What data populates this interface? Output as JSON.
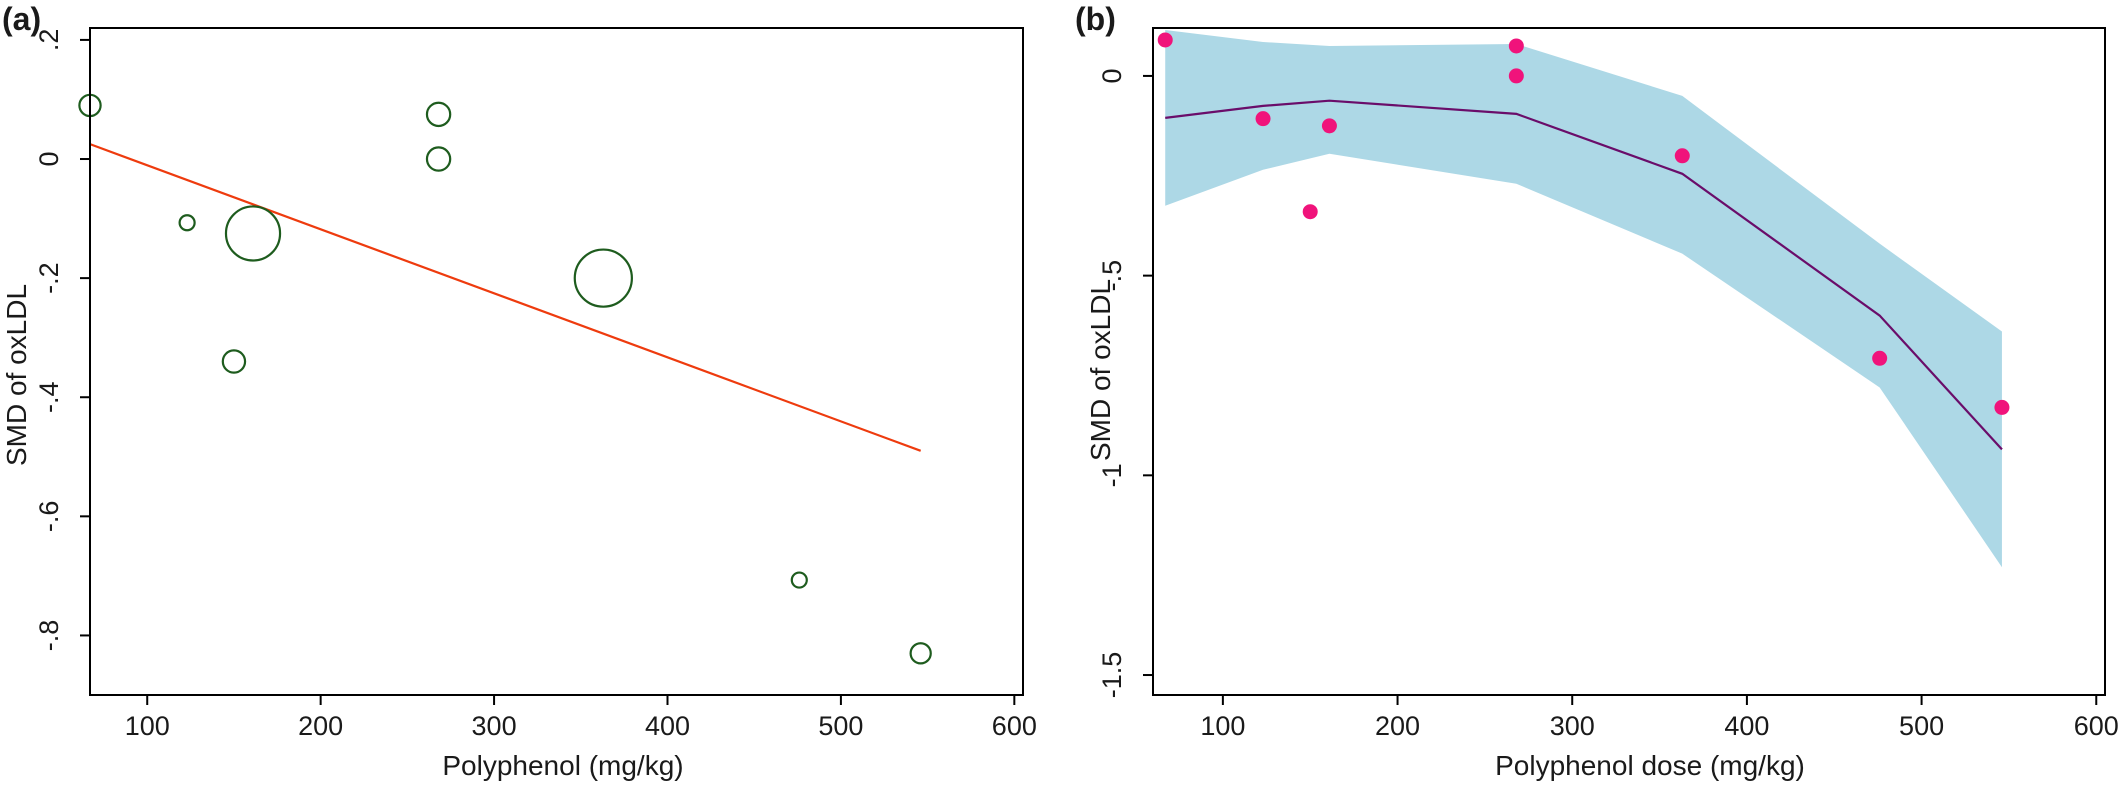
{
  "chart_data": [
    {
      "panel_label": "(a)",
      "type": "scatter",
      "xlabel": "Polyphenol (mg/kg)",
      "ylabel": "SMD of oxLDL",
      "xlim": [
        67,
        605
      ],
      "ylim": [
        -0.9,
        0.22
      ],
      "xticks": [
        100,
        200,
        300,
        400,
        500,
        600
      ],
      "xtick_labels": [
        "100",
        "200",
        "300",
        "400",
        "500",
        "600"
      ],
      "yticks": [
        -0.8,
        -0.6,
        -0.4,
        -0.2,
        0,
        0.2
      ],
      "ytick_labels": [
        "-.8",
        "-.6",
        "-.4",
        "-.2",
        "0",
        ".2"
      ],
      "grid": false,
      "marker": "hollow circle sized by study weight",
      "point_color": "#1e5c1e",
      "line_color": "#ee3b0e",
      "points": [
        {
          "x": 67,
          "y": 0.09,
          "weight": 2.0
        },
        {
          "x": 123,
          "y": -0.107,
          "weight": 1.0
        },
        {
          "x": 150,
          "y": -0.34,
          "weight": 2.2
        },
        {
          "x": 161,
          "y": -0.125,
          "weight": 13.0
        },
        {
          "x": 268,
          "y": 0.075,
          "weight": 2.4
        },
        {
          "x": 268,
          "y": 0.0,
          "weight": 2.4
        },
        {
          "x": 363,
          "y": -0.2,
          "weight": 14.5
        },
        {
          "x": 476,
          "y": -0.707,
          "weight": 1.0
        },
        {
          "x": 546,
          "y": -0.83,
          "weight": 1.8
        }
      ],
      "fit_line": {
        "x": [
          67,
          546
        ],
        "y": [
          0.025,
          -0.49
        ]
      }
    },
    {
      "panel_label": "(b)",
      "type": "line",
      "xlabel": "Polyphenol dose (mg/kg)",
      "ylabel": "SMD of oxLDL",
      "xlim": [
        60,
        605
      ],
      "ylim": [
        -1.55,
        0.12
      ],
      "xticks": [
        100,
        200,
        300,
        400,
        500,
        600
      ],
      "xtick_labels": [
        "100",
        "200",
        "300",
        "400",
        "500",
        "600"
      ],
      "yticks": [
        -1.5,
        -1,
        -0.5,
        0
      ],
      "ytick_labels": [
        "-1.5",
        "-1",
        "-.5",
        "0"
      ],
      "grid": false,
      "band_color": "#add8e6",
      "line_color": "#6a0d6a",
      "point_color": "#f0137b",
      "curve": {
        "x": [
          67,
          123,
          161,
          268,
          363,
          476,
          546
        ],
        "y": [
          -0.105,
          -0.075,
          -0.062,
          -0.095,
          -0.245,
          -0.6,
          -0.935
        ]
      },
      "ci_upper": {
        "x": [
          67,
          123,
          161,
          268,
          363,
          476,
          546
        ],
        "y": [
          0.115,
          0.085,
          0.075,
          0.08,
          -0.05,
          -0.42,
          -0.64
        ]
      },
      "ci_lower": {
        "x": [
          67,
          123,
          161,
          268,
          363,
          476,
          546
        ],
        "y": [
          -0.325,
          -0.235,
          -0.195,
          -0.27,
          -0.445,
          -0.78,
          -1.23
        ]
      },
      "points": [
        {
          "x": 67,
          "y": 0.09
        },
        {
          "x": 123,
          "y": -0.107
        },
        {
          "x": 150,
          "y": -0.34
        },
        {
          "x": 161,
          "y": -0.125
        },
        {
          "x": 268,
          "y": 0.075
        },
        {
          "x": 268,
          "y": 0.0
        },
        {
          "x": 363,
          "y": -0.2
        },
        {
          "x": 476,
          "y": -0.707
        },
        {
          "x": 546,
          "y": -0.83
        }
      ]
    }
  ]
}
